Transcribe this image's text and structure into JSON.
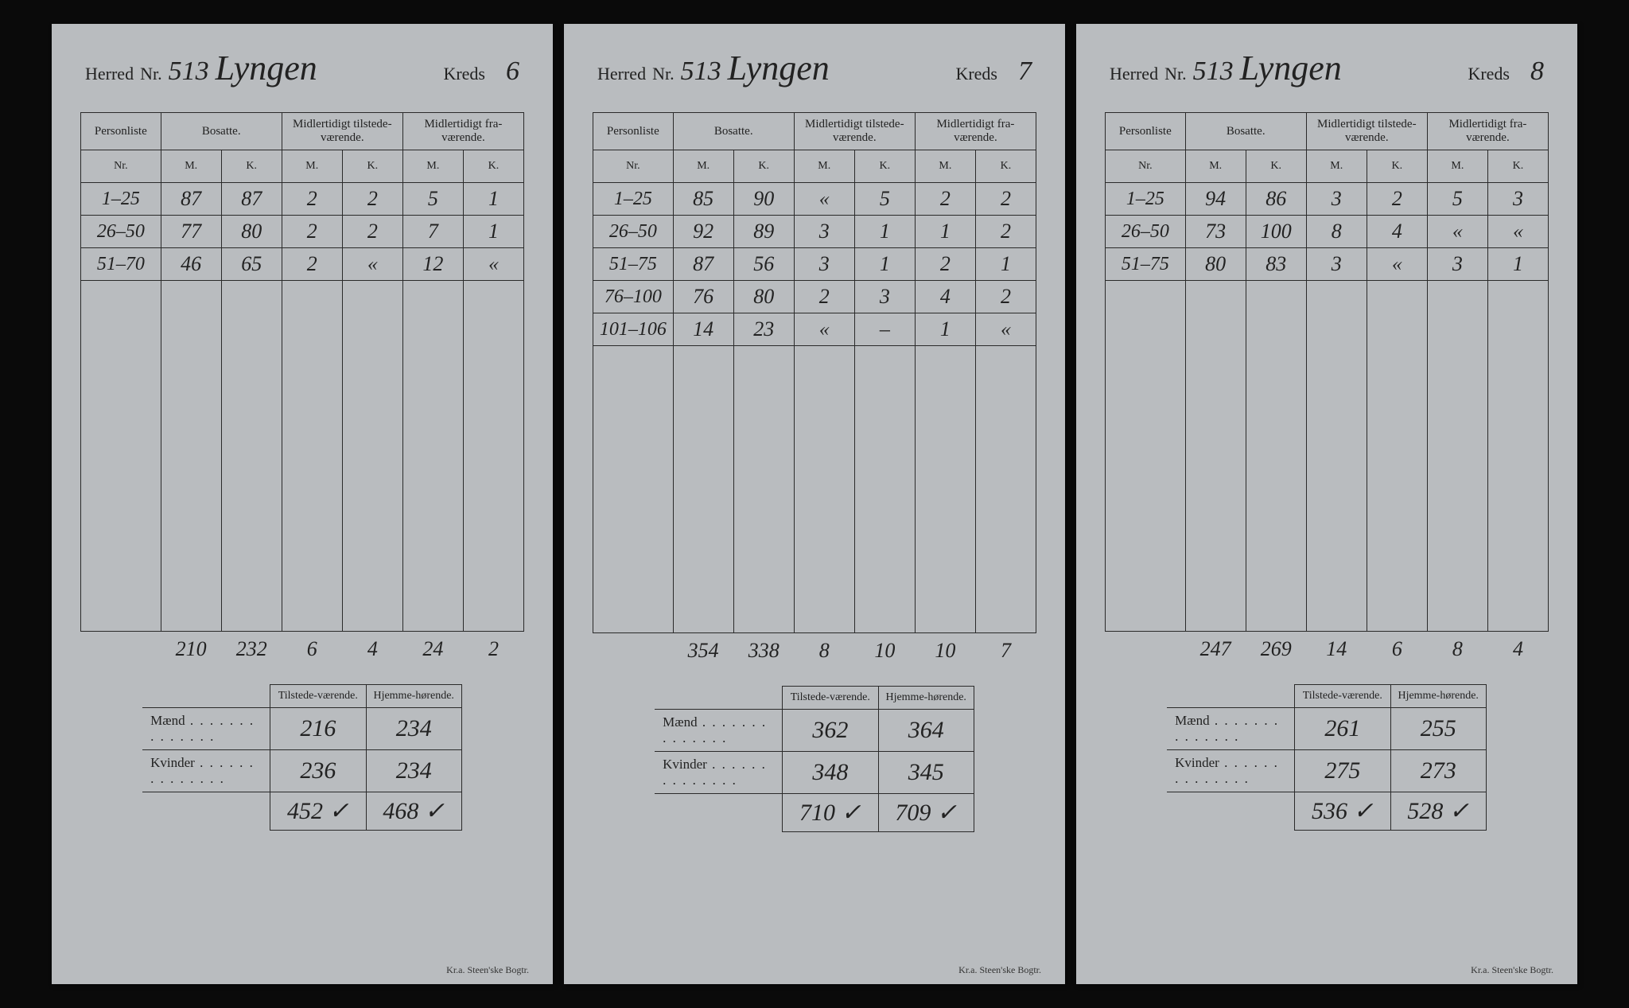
{
  "labels": {
    "herred": "Herred",
    "nr": "Nr.",
    "kreds": "Kreds",
    "personliste": "Personliste",
    "bosatte": "Bosatte.",
    "tilstede": "Midlertidigt tilstede-værende.",
    "fravarende": "Midlertidigt fra-værende.",
    "M": "M.",
    "K": "K.",
    "tilstedevaerende": "Tilstede-værende.",
    "hjemmehorende": "Hjemme-hørende.",
    "maend": "Mænd",
    "kvinder": "Kvinder",
    "printer": "Kr.a. Steen'ske Bogtr."
  },
  "num_blank_rows": 14,
  "cards": [
    {
      "herred_nr": "513",
      "herred_name": "Lyngen",
      "kreds": "6",
      "rows": [
        {
          "nr": "1–25",
          "bm": "87",
          "bk": "87",
          "tm": "2",
          "tk": "2",
          "fm": "5",
          "fk": "1"
        },
        {
          "nr": "26–50",
          "bm": "77",
          "bk": "80",
          "tm": "2",
          "tk": "2",
          "fm": "7",
          "fk": "1"
        },
        {
          "nr": "51–70",
          "bm": "46",
          "bk": "65",
          "tm": "2",
          "tk": "«",
          "fm": "12",
          "fk": "«"
        }
      ],
      "totals": {
        "bm": "210",
        "bk": "232",
        "tm": "6",
        "tk": "4",
        "fm": "24",
        "fk": "2"
      },
      "summary": {
        "maend": {
          "til": "216",
          "hjem": "234"
        },
        "kvinder": {
          "til": "236",
          "hjem": "234"
        },
        "sum": {
          "til": "452 ✓",
          "hjem": "468 ✓"
        }
      }
    },
    {
      "herred_nr": "513",
      "herred_name": "Lyngen",
      "kreds": "7",
      "rows": [
        {
          "nr": "1–25",
          "bm": "85",
          "bk": "90",
          "tm": "«",
          "tk": "5",
          "fm": "2",
          "fk": "2"
        },
        {
          "nr": "26–50",
          "bm": "92",
          "bk": "89",
          "tm": "3",
          "tk": "1",
          "fm": "1",
          "fk": "2"
        },
        {
          "nr": "51–75",
          "bm": "87",
          "bk": "56",
          "tm": "3",
          "tk": "1",
          "fm": "2",
          "fk": "1"
        },
        {
          "nr": "76–100",
          "bm": "76",
          "bk": "80",
          "tm": "2",
          "tk": "3",
          "fm": "4",
          "fk": "2"
        },
        {
          "nr": "101–106",
          "bm": "14",
          "bk": "23",
          "tm": "«",
          "tk": "–",
          "fm": "1",
          "fk": "«"
        }
      ],
      "totals": {
        "bm": "354",
        "bk": "338",
        "tm": "8",
        "tk": "10",
        "fm": "10",
        "fk": "7"
      },
      "summary": {
        "maend": {
          "til": "362",
          "hjem": "364"
        },
        "kvinder": {
          "til": "348",
          "hjem": "345"
        },
        "sum": {
          "til": "710 ✓",
          "hjem": "709 ✓"
        }
      }
    },
    {
      "herred_nr": "513",
      "herred_name": "Lyngen",
      "kreds": "8",
      "rows": [
        {
          "nr": "1–25",
          "bm": "94",
          "bk": "86",
          "tm": "3",
          "tk": "2",
          "fm": "5",
          "fk": "3"
        },
        {
          "nr": "26–50",
          "bm": "73",
          "bk": "100",
          "tm": "8",
          "tk": "4",
          "fm": "«",
          "fk": "«"
        },
        {
          "nr": "51–75",
          "bm": "80",
          "bk": "83",
          "tm": "3",
          "tk": "«",
          "fm": "3",
          "fk": "1"
        }
      ],
      "totals": {
        "bm": "247",
        "bk": "269",
        "tm": "14",
        "tk": "6",
        "fm": "8",
        "fk": "4"
      },
      "summary": {
        "maend": {
          "til": "261",
          "hjem": "255"
        },
        "kvinder": {
          "til": "275",
          "hjem": "273"
        },
        "sum": {
          "til": "536 ✓",
          "hjem": "528 ✓"
        }
      }
    }
  ]
}
